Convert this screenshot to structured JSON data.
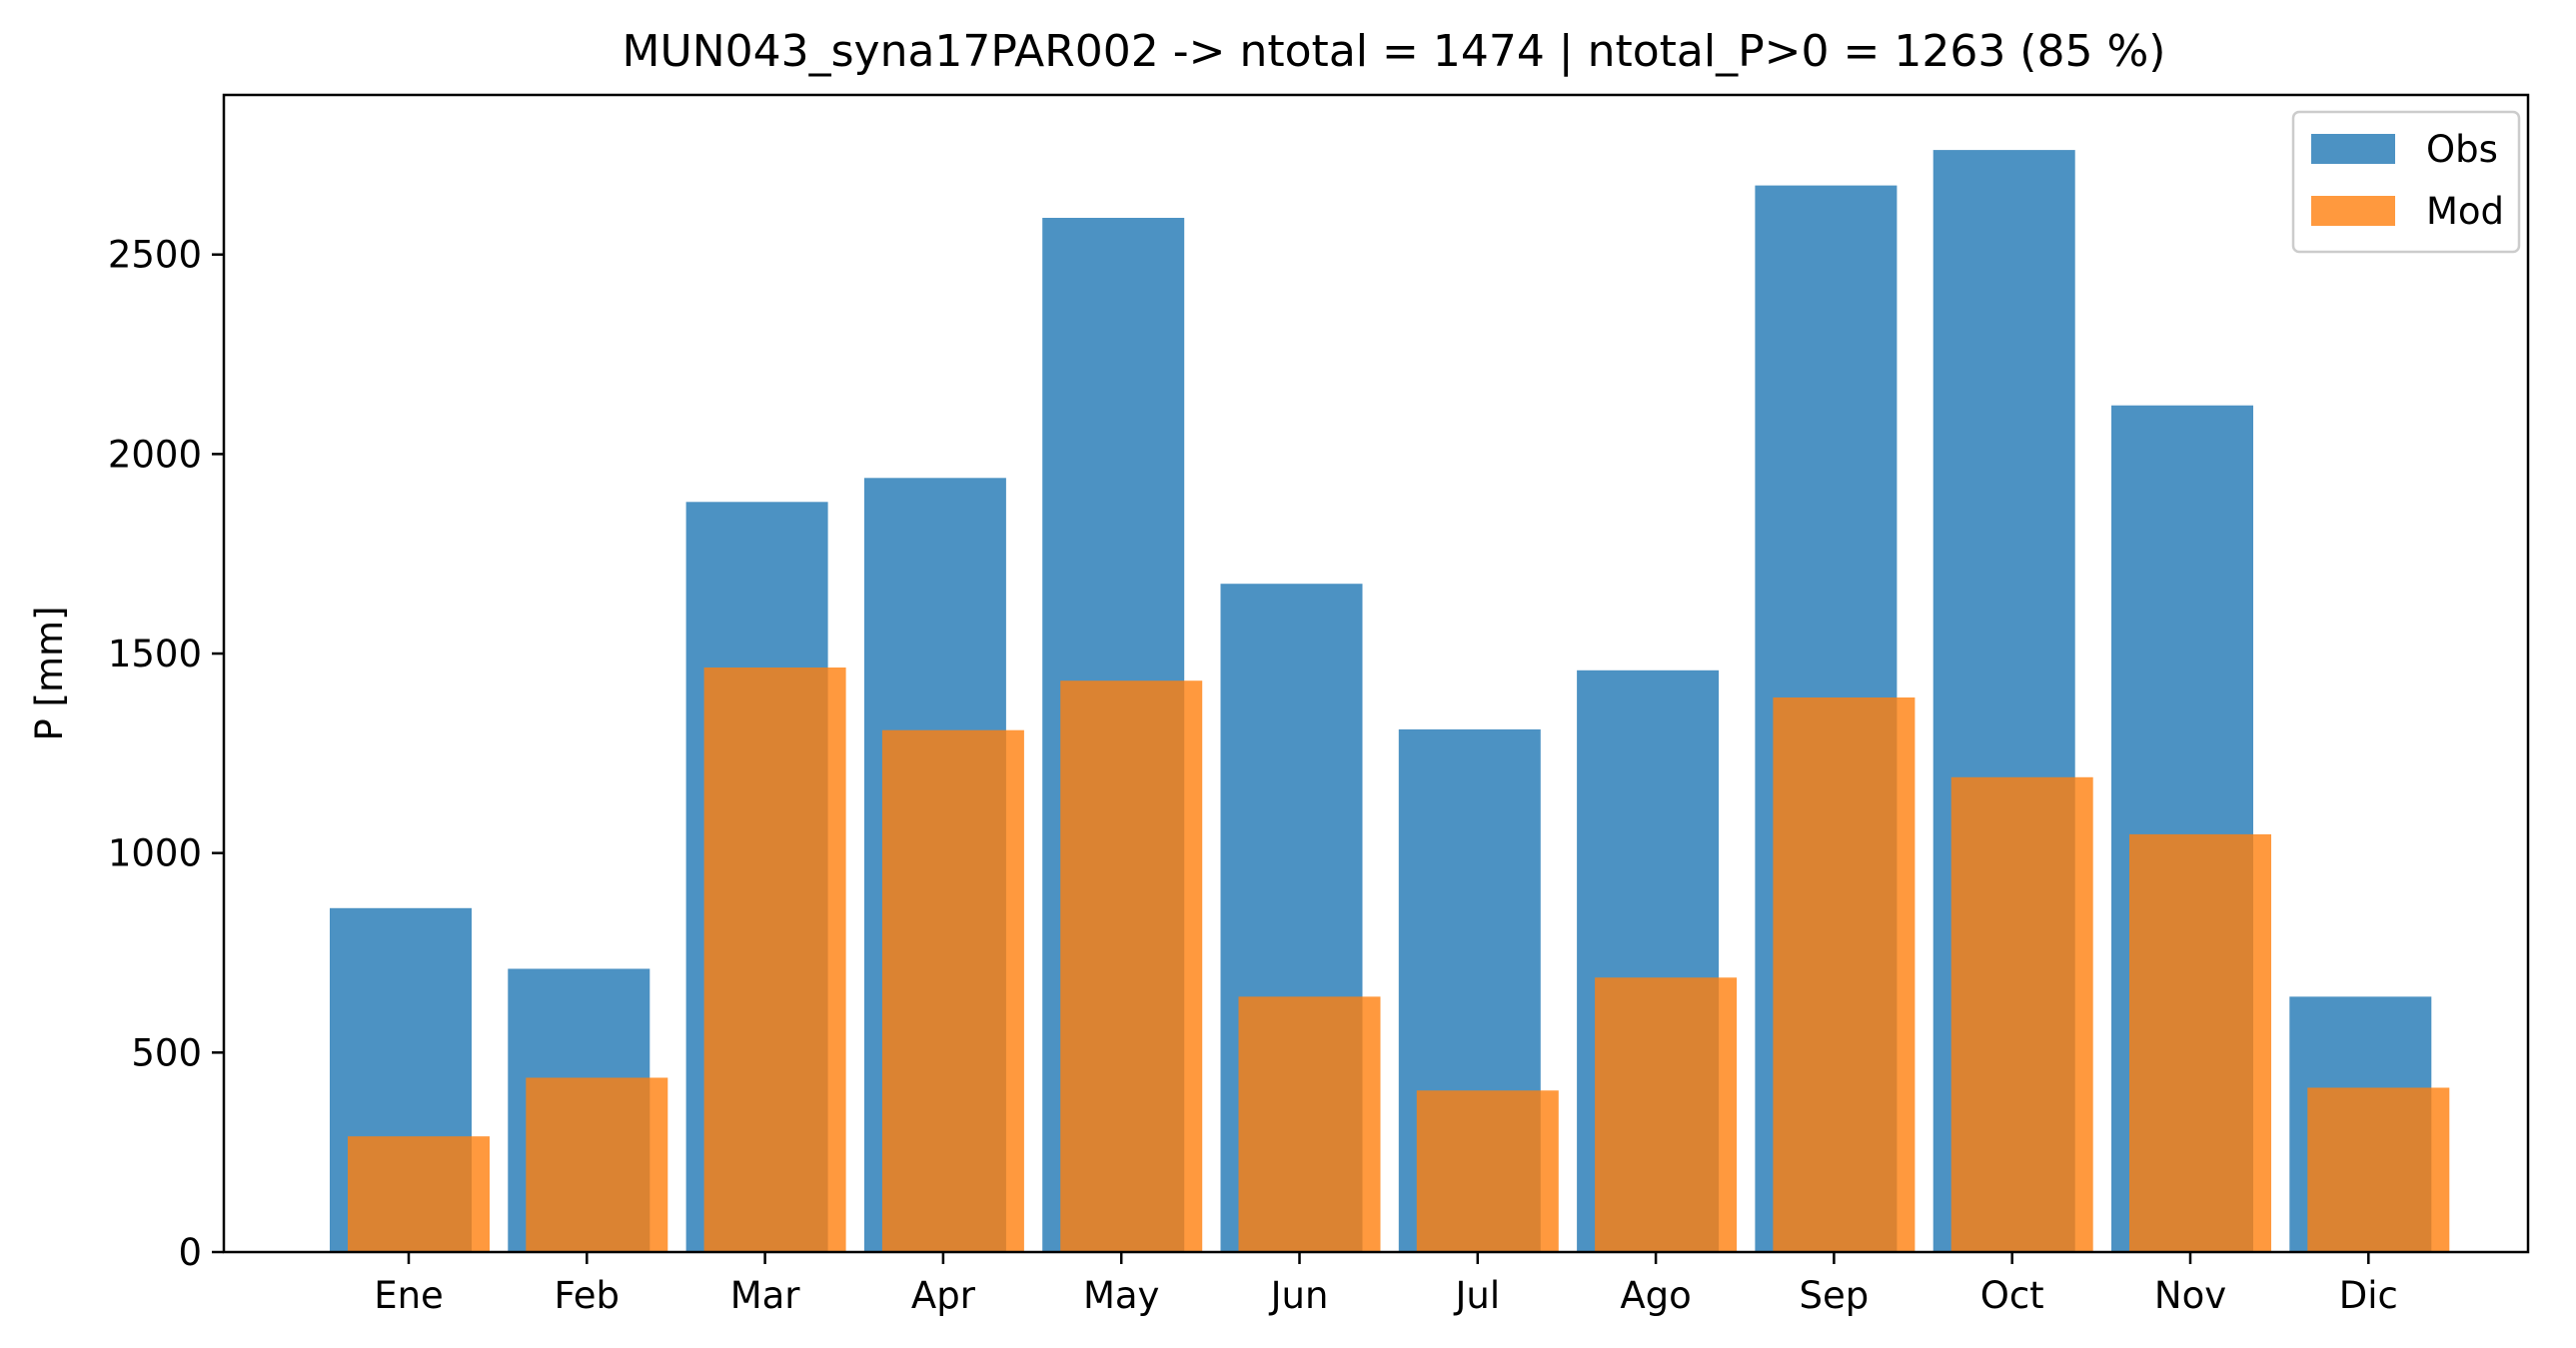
{
  "chart_data": {
    "type": "bar",
    "title": "MUN043_syna17PAR002 -> ntotal = 1474 | ntotal_P>0 = 1263 (85 %)",
    "xlabel": "",
    "ylabel": "P [mm]",
    "categories": [
      "Ene",
      "Feb",
      "Mar",
      "Apr",
      "May",
      "Jun",
      "Jul",
      "Ago",
      "Sep",
      "Oct",
      "Nov",
      "Dic"
    ],
    "series": [
      {
        "name": "Obs",
        "color": "#1f77b4",
        "values": [
          862,
          710,
          1880,
          1940,
          2592,
          1675,
          1310,
          1458,
          2673,
          2762,
          2122,
          640
        ]
      },
      {
        "name": "Mod",
        "color": "#ff7f0e",
        "values": [
          290,
          437,
          1465,
          1308,
          1432,
          640,
          405,
          688,
          1390,
          1190,
          1047,
          412
        ]
      }
    ],
    "ylim": [
      0,
      2900
    ],
    "yticks": [
      0,
      500,
      1000,
      1500,
      2000,
      2500
    ],
    "grid": false,
    "legend_position": "top-right"
  }
}
